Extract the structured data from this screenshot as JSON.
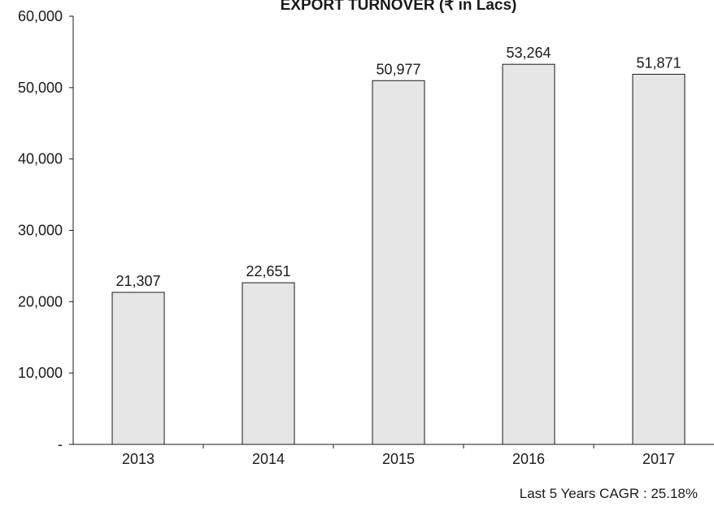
{
  "chart_data": {
    "type": "bar",
    "title": "EXPORT TURNOVER (₹ in Lacs)",
    "categories": [
      "2013",
      "2014",
      "2015",
      "2016",
      "2017"
    ],
    "values": [
      21307,
      22651,
      50977,
      53264,
      51871
    ],
    "value_labels": [
      "21,307",
      "22,651",
      "50,977",
      "53,264",
      "51,871"
    ],
    "ylim": [
      0,
      60000
    ],
    "ytick_labels": [
      "-",
      "10,000",
      "20,000",
      "30,000",
      "40,000",
      "50,000",
      "60,000"
    ],
    "ytick_values": [
      0,
      10000,
      20000,
      30000,
      40000,
      50000,
      60000
    ],
    "grid": false,
    "bar_color": "#e6e6e6",
    "bar_edge_color": "#1a1a1a"
  },
  "footnote": "Last 5 Years CAGR : 25.18%"
}
